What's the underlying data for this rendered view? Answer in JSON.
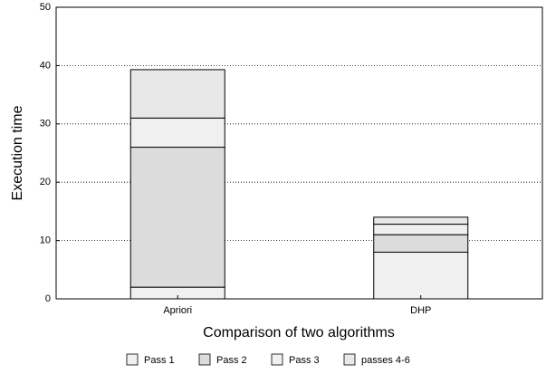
{
  "chart_data": {
    "type": "stacked_bar",
    "xlabel": "Comparison of two algorithms",
    "ylabel": "Execution time",
    "categories": [
      "Apriori",
      "DHP"
    ],
    "series": [
      {
        "name": "Pass 1",
        "color": "#f0f0f0",
        "values": [
          2,
          8
        ]
      },
      {
        "name": "Pass 2",
        "color": "#dcdcdc",
        "values": [
          24,
          3
        ]
      },
      {
        "name": "Pass 3",
        "color": "#f0f0f0",
        "values": [
          5,
          1.8
        ]
      },
      {
        "name": "passes 4-6",
        "color": "#e8e8e8",
        "values": [
          8.3,
          1.2
        ]
      }
    ],
    "ylim": [
      0,
      50
    ],
    "yticks": [
      0,
      10,
      20,
      30,
      40,
      50
    ],
    "grid": true,
    "legend": "bottom"
  }
}
